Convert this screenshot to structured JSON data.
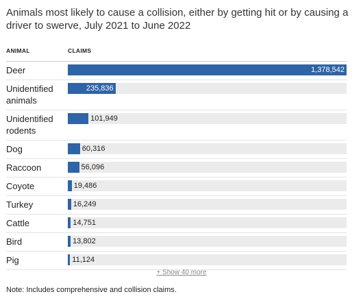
{
  "chart_data": {
    "type": "bar",
    "orientation": "horizontal",
    "subtitle": "Animals most likely to cause a collision, either by getting hit or by causing a driver to swerve, July 2021 to June 2022",
    "category_header": "ANIMAL",
    "value_header": "CLAIMS",
    "categories": [
      "Deer",
      "Unidentified animals",
      "Unidentified rodents",
      "Dog",
      "Raccoon",
      "Coyote",
      "Turkey",
      "Cattle",
      "Bird",
      "Pig"
    ],
    "values": [
      1378542,
      235836,
      101949,
      60316,
      56096,
      19486,
      16249,
      14751,
      13802,
      11124
    ],
    "value_labels": [
      "1,378,542",
      "235,836",
      "101,949",
      "60,316",
      "56,096",
      "19,486",
      "16,249",
      "14,751",
      "13,802",
      "11,124"
    ],
    "xlim": [
      0,
      1378542
    ],
    "color": "#2e64a8",
    "track_color": "#ebebeb",
    "more_button": "+ Show 40 more",
    "note": "Note: Includes comprehensive and collision claims."
  }
}
